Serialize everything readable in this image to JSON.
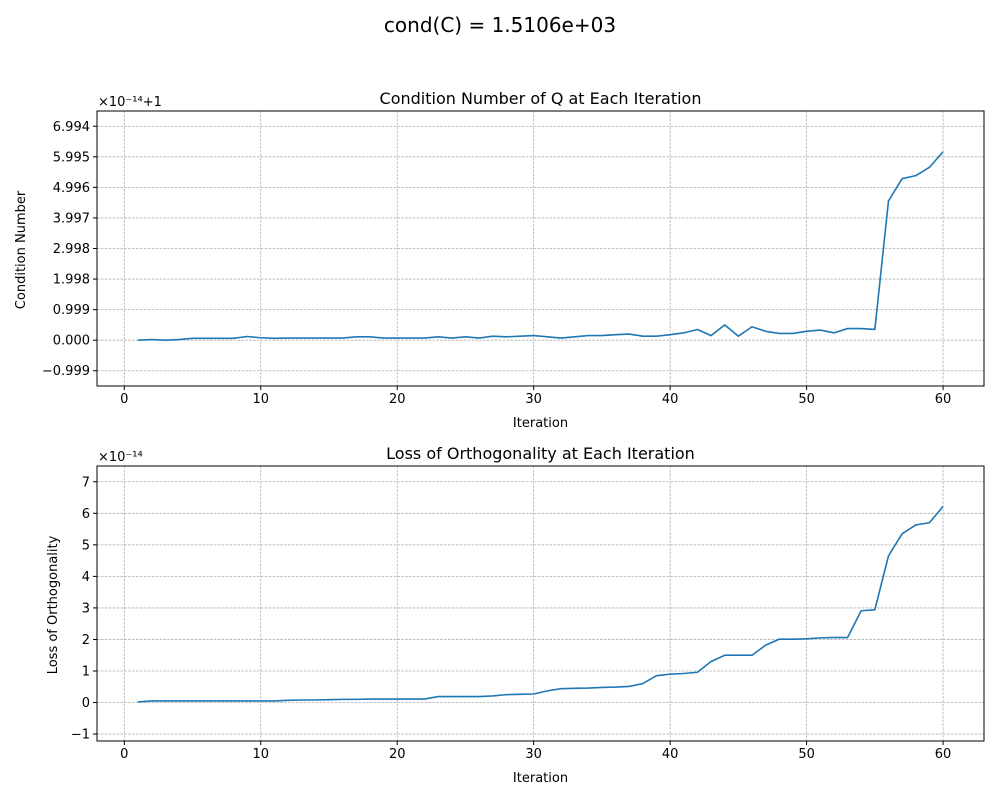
{
  "figure": {
    "suptitle": "cond(C) = 1.5106e+03"
  },
  "chart_data": [
    {
      "type": "line",
      "title": "Condition Number of Q at Each Iteration",
      "xlabel": "Iteration",
      "ylabel": "Condition Number",
      "offset_text": "×10⁻¹⁴+1",
      "xlim": [
        -2,
        63
      ],
      "ylim": [
        -1.498,
        7.493
      ],
      "xticks": [
        0,
        10,
        20,
        30,
        40,
        50,
        60
      ],
      "xtick_labels": [
        "0",
        "10",
        "20",
        "30",
        "40",
        "50",
        "60"
      ],
      "yticks": [
        -0.999,
        0,
        0.999,
        1.998,
        2.998,
        3.997,
        4.996,
        5.995,
        6.994
      ],
      "ytick_labels": [
        "−0.999",
        "0.000",
        "0.999",
        "1.998",
        "2.998",
        "3.997",
        "4.996",
        "5.995",
        "6.994"
      ],
      "grid": true,
      "series": [
        {
          "color": "#1f77b4",
          "x": [
            1,
            2,
            3,
            4,
            5,
            6,
            7,
            8,
            9,
            10,
            11,
            12,
            13,
            14,
            15,
            16,
            17,
            18,
            19,
            20,
            21,
            22,
            23,
            24,
            25,
            26,
            27,
            28,
            29,
            30,
            31,
            32,
            33,
            34,
            35,
            36,
            37,
            38,
            39,
            40,
            41,
            42,
            43,
            44,
            45,
            46,
            47,
            48,
            49,
            50,
            51,
            52,
            53,
            54,
            55,
            56,
            57,
            58,
            59,
            60
          ],
          "y": [
            0.0,
            0.02,
            0.0,
            0.02,
            0.06,
            0.06,
            0.06,
            0.06,
            0.12,
            0.08,
            0.06,
            0.07,
            0.07,
            0.07,
            0.07,
            0.07,
            0.11,
            0.11,
            0.07,
            0.07,
            0.07,
            0.07,
            0.11,
            0.07,
            0.11,
            0.07,
            0.13,
            0.11,
            0.13,
            0.15,
            0.11,
            0.07,
            0.11,
            0.15,
            0.15,
            0.18,
            0.2,
            0.13,
            0.13,
            0.18,
            0.24,
            0.35,
            0.15,
            0.5,
            0.13,
            0.44,
            0.29,
            0.22,
            0.22,
            0.29,
            0.33,
            0.24,
            0.38,
            0.38,
            0.35,
            4.55,
            5.28,
            5.38,
            5.65,
            6.16
          ]
        }
      ]
    },
    {
      "type": "line",
      "title": "Loss of Orthogonality at Each Iteration",
      "xlabel": "Iteration",
      "ylabel": "Loss of Orthogonality",
      "offset_text": "×10⁻¹⁴",
      "xlim": [
        -2,
        63
      ],
      "ylim": [
        -1.22,
        7.5
      ],
      "xticks": [
        0,
        10,
        20,
        30,
        40,
        50,
        60
      ],
      "xtick_labels": [
        "0",
        "10",
        "20",
        "30",
        "40",
        "50",
        "60"
      ],
      "yticks": [
        -1,
        0,
        1,
        2,
        3,
        4,
        5,
        6,
        7
      ],
      "ytick_labels": [
        "−1",
        "0",
        "1",
        "2",
        "3",
        "4",
        "5",
        "6",
        "7"
      ],
      "grid": true,
      "series": [
        {
          "color": "#1f77b4",
          "x": [
            1,
            2,
            3,
            4,
            5,
            6,
            7,
            8,
            9,
            10,
            11,
            12,
            13,
            14,
            15,
            16,
            17,
            18,
            19,
            20,
            21,
            22,
            23,
            24,
            25,
            26,
            27,
            28,
            29,
            30,
            31,
            32,
            33,
            34,
            35,
            36,
            37,
            38,
            39,
            40,
            41,
            42,
            43,
            44,
            45,
            46,
            47,
            48,
            49,
            50,
            51,
            52,
            53,
            54,
            55,
            56,
            57,
            58,
            59,
            60
          ],
          "y": [
            0.02,
            0.05,
            0.05,
            0.05,
            0.05,
            0.05,
            0.05,
            0.05,
            0.05,
            0.05,
            0.05,
            0.07,
            0.08,
            0.08,
            0.09,
            0.1,
            0.1,
            0.11,
            0.11,
            0.11,
            0.11,
            0.11,
            0.19,
            0.19,
            0.19,
            0.19,
            0.21,
            0.25,
            0.26,
            0.27,
            0.37,
            0.44,
            0.45,
            0.46,
            0.48,
            0.49,
            0.51,
            0.6,
            0.85,
            0.9,
            0.92,
            0.96,
            1.3,
            1.5,
            1.5,
            1.5,
            1.82,
            2.01,
            2.01,
            2.02,
            2.05,
            2.06,
            2.06,
            2.91,
            2.94,
            4.65,
            5.35,
            5.63,
            5.7,
            6.22
          ]
        }
      ]
    }
  ]
}
